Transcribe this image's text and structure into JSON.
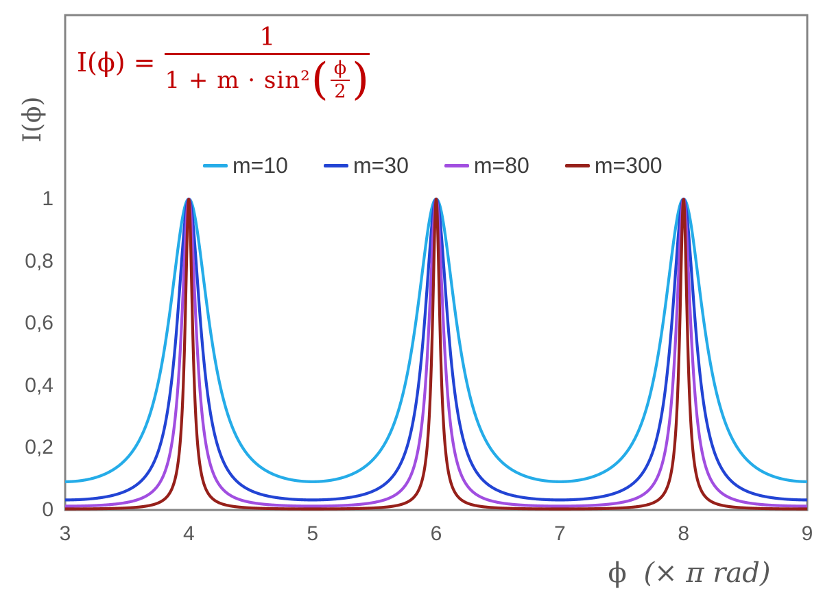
{
  "chart_data": {
    "type": "line",
    "formula_text": "I(ϕ) = 1 / (1 + m · sin²(ϕ/2))",
    "function": "I(x) = 1 / (1 + m * sin^2(x * π / 2)), x expressed in units of π rad",
    "x_range": [
      3,
      9
    ],
    "y_range": [
      0,
      1.6
    ],
    "grid": false,
    "legend_position": "top-center-inside",
    "x_ticks": [
      {
        "label": "3",
        "value": 3
      },
      {
        "label": "4",
        "value": 4
      },
      {
        "label": "5",
        "value": 5
      },
      {
        "label": "6",
        "value": 6
      },
      {
        "label": "7",
        "value": 7
      },
      {
        "label": "8",
        "value": 8
      },
      {
        "label": "9",
        "value": 9
      }
    ],
    "y_ticks": [
      {
        "label": "1",
        "value": 1.0
      },
      {
        "label": "0,8",
        "value": 0.8
      },
      {
        "label": "0,6",
        "value": 0.6
      },
      {
        "label": "0,4",
        "value": 0.4
      },
      {
        "label": "0,2",
        "value": 0.2
      },
      {
        "label": "0",
        "value": 0.0
      }
    ],
    "series": [
      {
        "name": "m=10",
        "m": 10,
        "color": "#25ACE8",
        "peak_value": 1,
        "min_value": 0.0909
      },
      {
        "name": "m=30",
        "m": 30,
        "color": "#2244D4",
        "peak_value": 1,
        "min_value": 0.0323
      },
      {
        "name": "m=80",
        "m": 80,
        "color": "#A14EE0",
        "peak_value": 1,
        "min_value": 0.0123
      },
      {
        "name": "m=300",
        "m": 300,
        "color": "#96201A",
        "peak_value": 1,
        "min_value": 0.0033
      }
    ],
    "peaks_at_x": [
      4,
      6,
      8
    ],
    "xlabel": {
      "symbol": "ϕ",
      "unit": "(× π rad)"
    },
    "ylabel": "I(ϕ)"
  },
  "formula": {
    "lhs": "I(ϕ) =",
    "numerator": "1",
    "den_text": "1 + m · sin²",
    "paren_open": "(",
    "paren_close": ")",
    "inner_numerator": "ϕ",
    "inner_denominator": "2",
    "color": "#C00000"
  },
  "styles": {
    "frame_color": "#848484",
    "tick_text_color": "#595959",
    "axis_title_color": "#595959",
    "legend_text_color": "#3D3D3D",
    "curve_width": 4.2,
    "background": "#ffffff"
  }
}
